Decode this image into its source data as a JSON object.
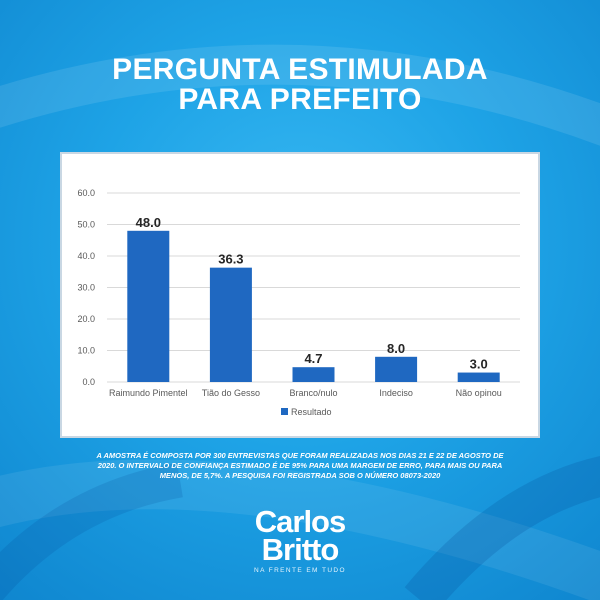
{
  "header": {
    "title_line1": "PERGUNTA ESTIMULADA",
    "title_line2": "PARA PREFEITO"
  },
  "chart_data": {
    "type": "bar",
    "categories": [
      "Raimundo Pimentel",
      "Tião do Gesso",
      "Branco/nulo",
      "Indeciso",
      "Não opinou"
    ],
    "series": [
      {
        "name": "Resultado",
        "values": [
          48.0,
          36.3,
          4.7,
          8.0,
          3.0
        ]
      }
    ],
    "data_labels": [
      "48.0",
      "36.3",
      "4.7",
      "8.0",
      "3.0"
    ],
    "yticks": [
      "0.0",
      "10.0",
      "20.0",
      "30.0",
      "40.0",
      "50.0",
      "60.0"
    ],
    "ylim": [
      0,
      60
    ],
    "grid": true,
    "legend": "bottom-center",
    "bar_color": "#1f68c1",
    "title": "",
    "xlabel": "",
    "ylabel": ""
  },
  "footnote": "A AMOSTRA É COMPOSTA POR 300 ENTREVISTAS QUE FORAM REALIZADAS NOS DIAS 21 E 22 DE AGOSTO DE 2020. O INTERVALO DE CONFIANÇA ESTIMADO É DE 95% PARA UMA MARGEM DE ERRO, PARA MAIS OU PARA MENOS, DE 5,7%. A PESQUISA FOI REGISTRADA SOB O NÚMERO 08073-2020",
  "logo": {
    "line1": "Carlos",
    "line2": "Britto",
    "tagline": "NA FRENTE EM TUDO"
  }
}
